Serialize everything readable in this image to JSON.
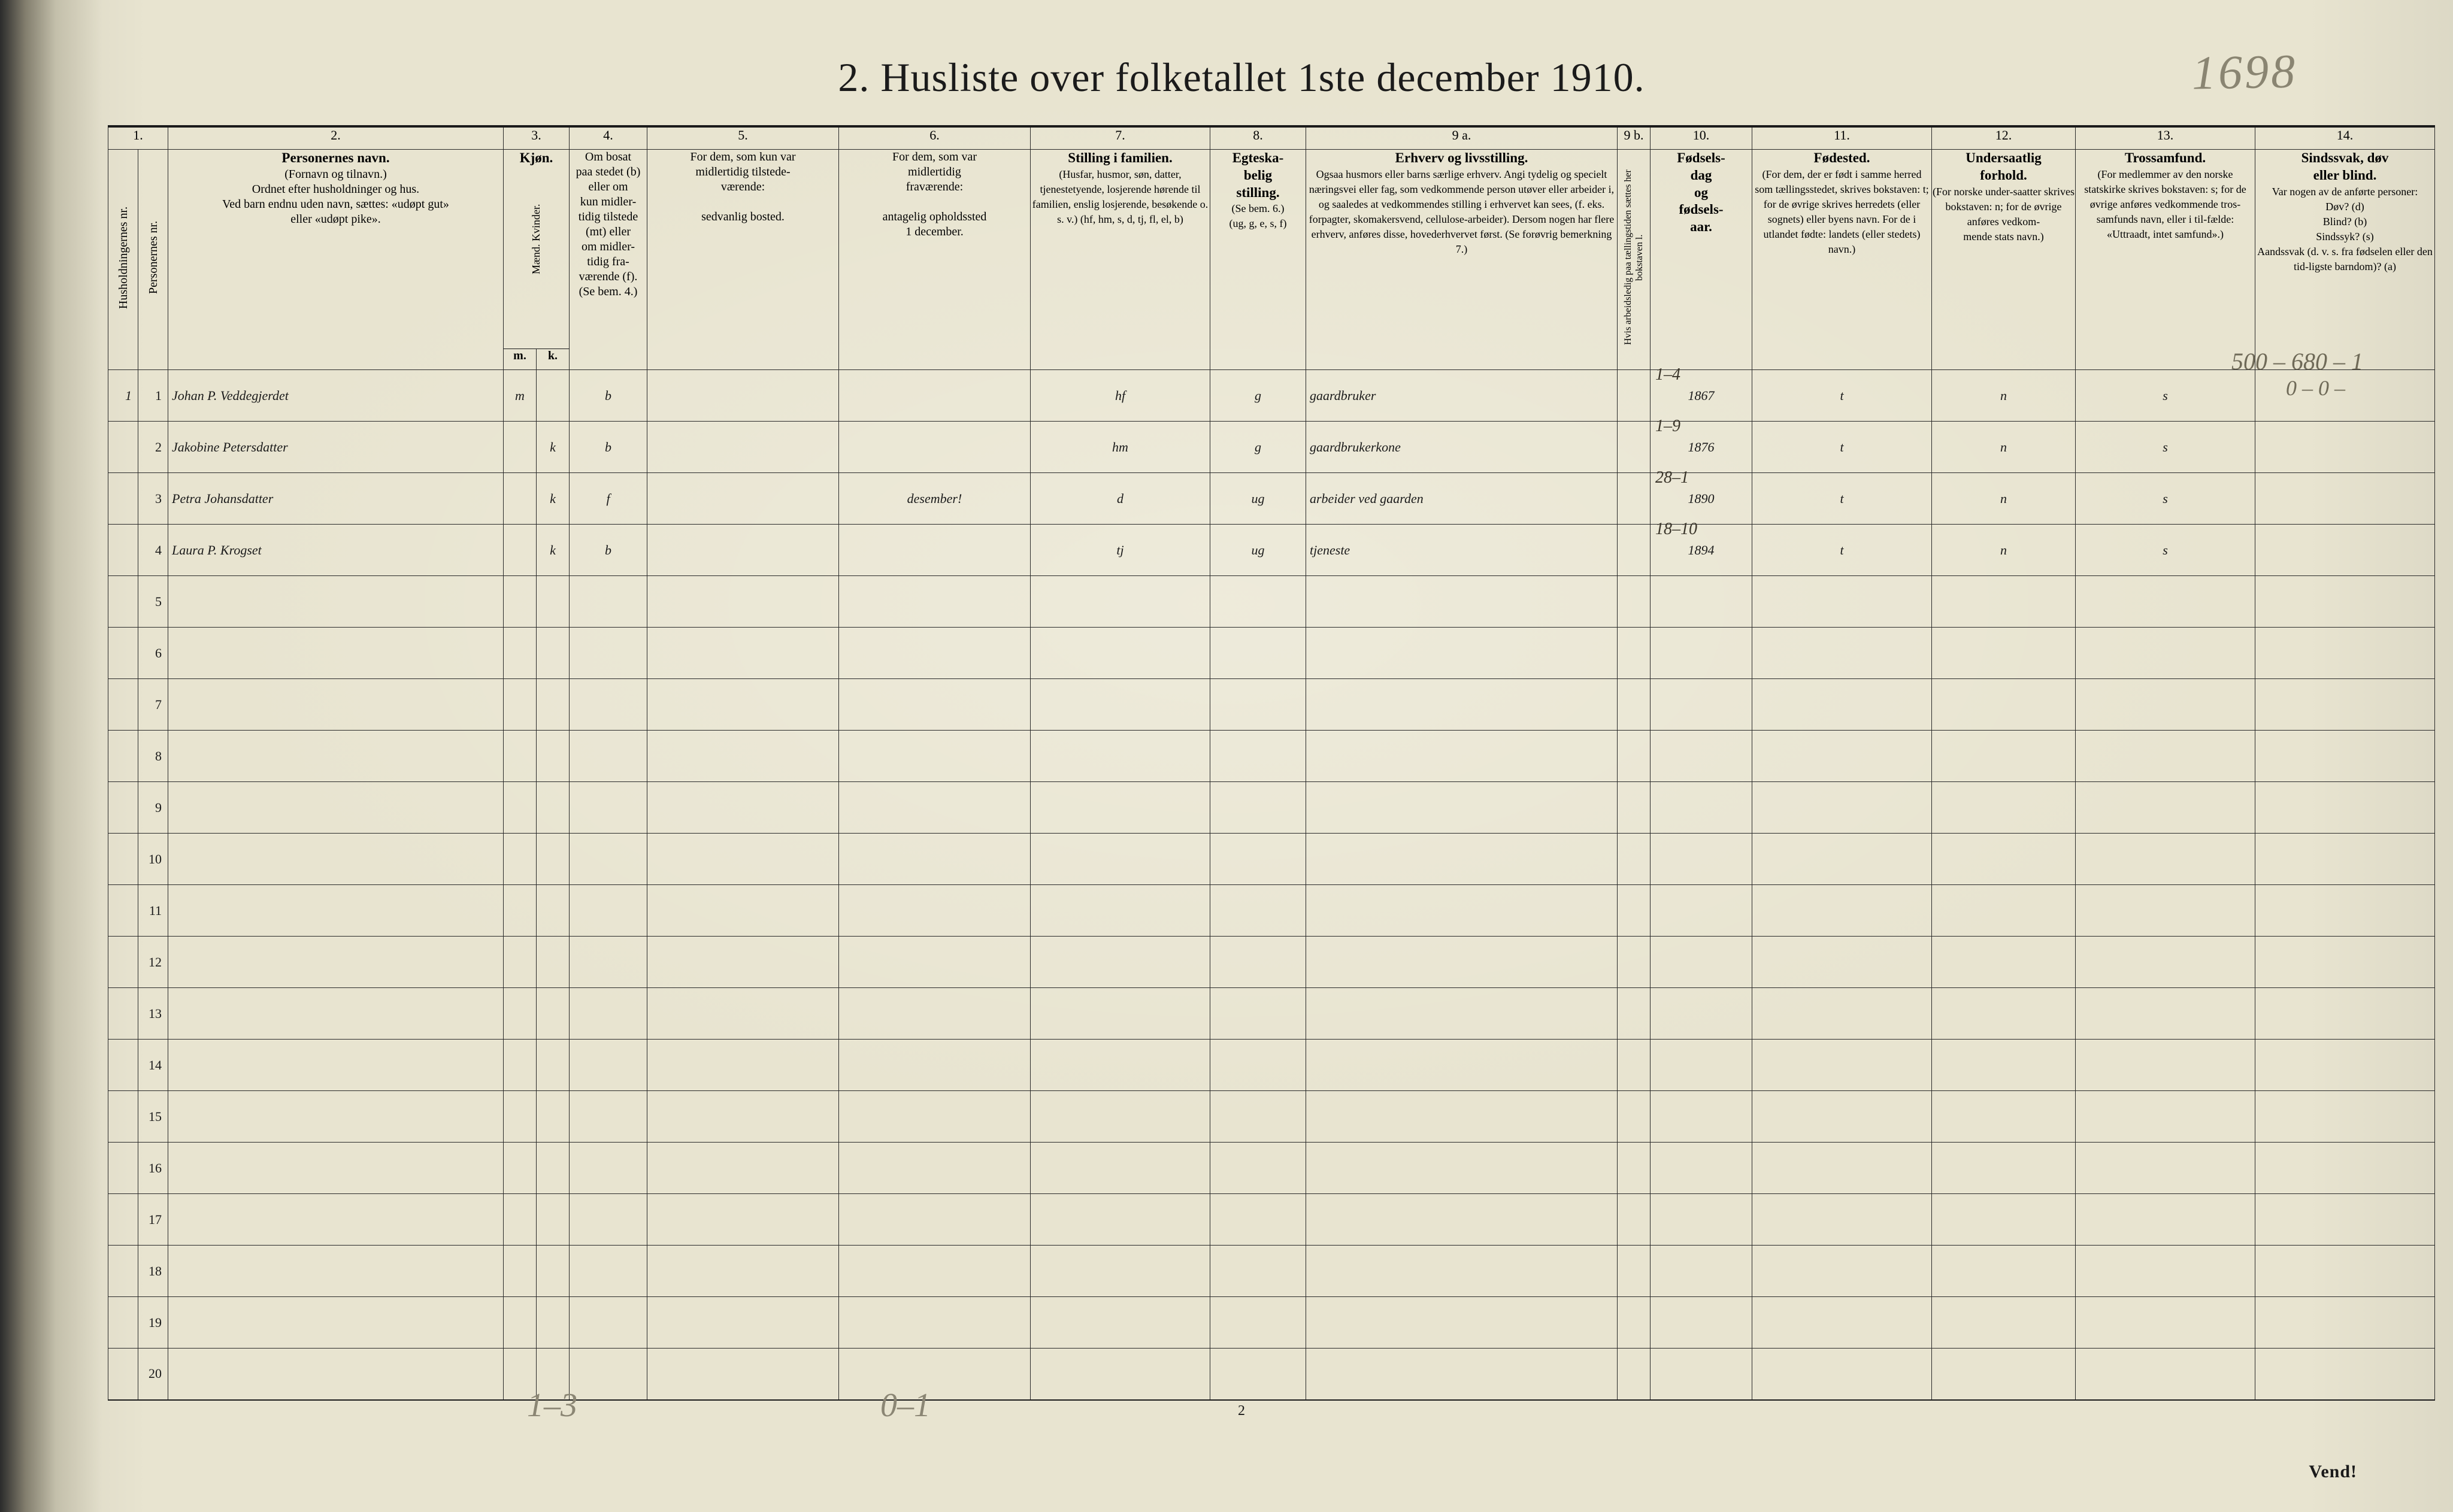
{
  "title": "2.  Husliste over folketallet 1ste december 1910.",
  "handwritten_page_number": "1698",
  "printed_page_number": "2",
  "vend_label": "Vend!",
  "margin_note_top": {
    "line1": "500 – 680 – 1",
    "line2": "0 – 0 –"
  },
  "footer_notes": {
    "left": "1–3",
    "right": "0–1"
  },
  "column_numbers": [
    "1.",
    "2.",
    "3.",
    "4.",
    "5.",
    "6.",
    "7.",
    "8.",
    "9 a.",
    "9 b.",
    "10.",
    "11.",
    "12.",
    "13.",
    "14."
  ],
  "headers": {
    "c1": "Husholdningernes nr.",
    "c2": "Personernes nr.",
    "c3_title": "Personernes navn.",
    "c3_body": "(Fornavn og tilnavn.)\nOrdnet efter husholdninger og hus.\nVed barn endnu uden navn, sættes: «udøpt gut»\neller «udøpt pike».",
    "c4_title": "Kjøn.",
    "c4_sub": "Mænd.  Kvinder.",
    "c4_mk": [
      "m.",
      "k."
    ],
    "c5_title": "Om bosat\npaa stedet (b) eller om\nkun midler-\ntidig tilstede (mt) eller\nom midler-\ntidig fra-\nværende (f).\n(Se bem. 4.)",
    "c6_title": "For dem, som kun var\nmidlertidig tilstede-\nværende:",
    "c6_body": "sedvanlig bosted.",
    "c7_title": "For dem, som var\nmidlertidig\nfraværende:",
    "c7_body": "antagelig opholdssted\n1 december.",
    "c8_title": "Stilling i familien.",
    "c8_body": "(Husfar, husmor, søn, datter, tjenestetyende, losjerende hørende til familien, enslig losjerende, besøkende o. s. v.)\n(hf, hm, s, d, tj, fl, el, b)",
    "c9_title": "Egteska-\nbelig\nstilling.",
    "c9_body": "(Se bem. 6.)\n(ug, g, e, s, f)",
    "c10_title": "Erhverv og livsstilling.",
    "c10_body": "Ogsaa husmors eller barns særlige erhverv. Angi tydelig og specielt næringsvei eller fag, som vedkommende person utøver eller arbeider i, og saaledes at vedkommendes stilling i erhvervet kan sees, (f. eks. forpagter, skomakersvend, cellulose-arbeider). Dersom nogen har flere erhverv, anføres disse, hovederhvervet først.\n(Se forøvrig bemerkning 7.)",
    "c10b": "Hvis arbeidsledig paa tællingstiden sættes her bokstaven l.",
    "c11_title": "Fødsels-\ndag\nog\nfødsels-\naar.",
    "c12_title": "Fødested.",
    "c12_body": "(For dem, der er født i samme herred som tællingsstedet, skrives bokstaven: t; for de øvrige skrives herredets (eller sognets) eller byens navn. For de i utlandet fødte: landets (eller stedets) navn.)",
    "c13_title": "Undersaatlig\nforhold.",
    "c13_body": "(For norske under-saatter skrives bokstaven: n; for de øvrige anføres vedkom-\nmende stats navn.)",
    "c14_title": "Trossamfund.",
    "c14_body": "(For medlemmer av den norske statskirke skrives bokstaven: s; for de øvrige anføres vedkommende tros-samfunds navn, eller i til-fælde: «Uttraadt, intet samfund».)",
    "c15_title": "Sindssvak, døv\neller blind.",
    "c15_body": "Var nogen av de anførte personer:\nDøv?        (d)\nBlind?      (b)\nSindssyk?  (s)\nAandssvak (d. v. s. fra fødselen eller den tid-ligste barndom)?  (a)"
  },
  "rows": [
    {
      "hh": "1",
      "pn": "1",
      "name": "Johan P. Veddegjerdet",
      "sex_m": "m",
      "sex_k": "",
      "bosat": "b",
      "mt_sted": "",
      "frav_sted": "",
      "fam": "hf",
      "egte": "g",
      "erhverv": "gaardbruker",
      "birth_sup": "1–4",
      "birth": "1867",
      "fodested": "t",
      "undersaat": "n",
      "tros": "s",
      "sind": ""
    },
    {
      "hh": "",
      "pn": "2",
      "name": "Jakobine Petersdatter",
      "sex_m": "",
      "sex_k": "k",
      "bosat": "b",
      "mt_sted": "",
      "frav_sted": "",
      "fam": "hm",
      "egte": "g",
      "erhverv": "gaardbrukerkone",
      "birth_sup": "1–9",
      "birth": "1876",
      "fodested": "t",
      "undersaat": "n",
      "tros": "s",
      "sind": ""
    },
    {
      "hh": "",
      "pn": "3",
      "name": "Petra Johansdatter",
      "sex_m": "",
      "sex_k": "k",
      "bosat": "f",
      "mt_sted": "",
      "frav_sted": "desember!",
      "fam": "d",
      "egte": "ug",
      "erhverv": "arbeider ved gaarden",
      "birth_sup": "28–1",
      "birth": "1890",
      "fodested": "t",
      "undersaat": "n",
      "tros": "s",
      "sind": ""
    },
    {
      "hh": "",
      "pn": "4",
      "name": "Laura P. Krogset",
      "sex_m": "",
      "sex_k": "k",
      "bosat": "b",
      "mt_sted": "",
      "frav_sted": "",
      "fam": "tj",
      "egte": "ug",
      "erhverv": "tjeneste",
      "birth_sup": "18–10",
      "birth": "1894",
      "fodested": "t",
      "undersaat": "n",
      "tros": "s",
      "sind": ""
    }
  ],
  "blank_row_count": 16,
  "colors": {
    "paper": "#e8e4d0",
    "ink": "#1b1b1b",
    "handwriting": "#2f2a20",
    "pencil": "#8a8572",
    "rule": "#2a2a2a"
  }
}
